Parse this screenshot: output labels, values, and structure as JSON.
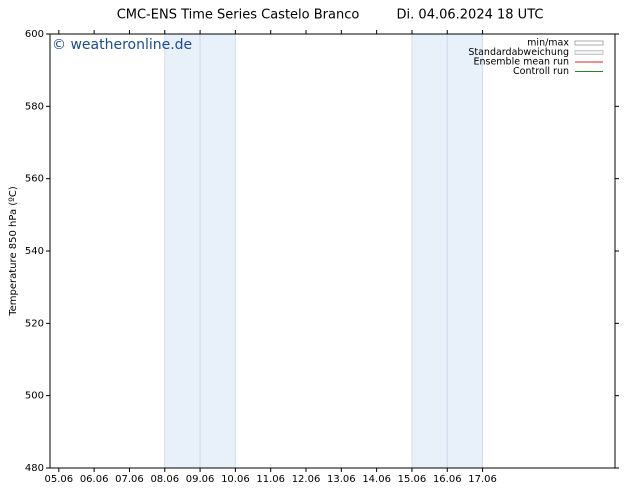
{
  "chart_data": {
    "type": "line",
    "title": "CMC-ENS Time Series Castelo Branco",
    "subtitle": "Di. 04.06.2024 18 UTC",
    "watermark": "© weatheronline.de",
    "ylabel": "Temperature 850 hPa (ºC)",
    "ylim": [
      480,
      600
    ],
    "yticks": [
      480,
      500,
      520,
      540,
      560,
      580,
      600
    ],
    "xlim": [
      -0.25,
      15.75
    ],
    "xticks": [
      {
        "value": 0,
        "label": "05.06"
      },
      {
        "value": 1,
        "label": "06.06"
      },
      {
        "value": 2,
        "label": "07.06"
      },
      {
        "value": 3,
        "label": "08.06"
      },
      {
        "value": 4,
        "label": "09.06"
      },
      {
        "value": 5,
        "label": "10.06"
      },
      {
        "value": 6,
        "label": "11.06"
      },
      {
        "value": 7,
        "label": "12.06"
      },
      {
        "value": 8,
        "label": "13.06"
      },
      {
        "value": 9,
        "label": "14.06"
      },
      {
        "value": 10,
        "label": "15.06"
      },
      {
        "value": 11,
        "label": "16.06"
      },
      {
        "value": 12,
        "label": "17.06"
      }
    ],
    "shaded_ranges": [
      [
        3,
        4
      ],
      [
        4,
        5
      ],
      [
        10,
        11
      ],
      [
        11,
        12
      ]
    ],
    "shade_color": "#e8f0fa",
    "series": [
      {
        "name": "min/max",
        "color": "#999999",
        "values": []
      },
      {
        "name": "Standardabweichung",
        "color": "#bbbbbb",
        "values": []
      },
      {
        "name": "Ensemble mean run",
        "color": "#dd2222",
        "values": []
      },
      {
        "name": "Controll run",
        "color": "#228822",
        "values": []
      }
    ]
  }
}
